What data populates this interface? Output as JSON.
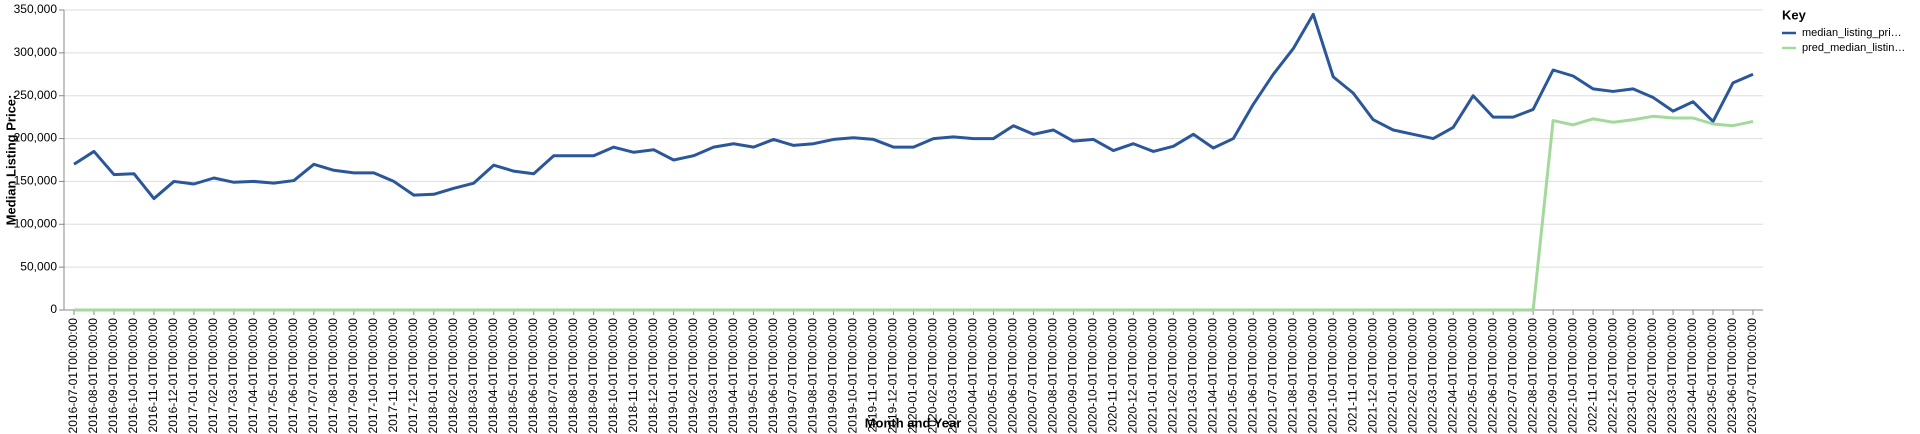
{
  "chart_data": {
    "type": "line",
    "x_label": "Month and Year",
    "y_label": "Median Listing Price:",
    "legend_title": "Key",
    "legend": "right",
    "grid": true,
    "categories": [
      "2016-07-01T00:00:00",
      "2016-08-01T00:00:00",
      "2016-09-01T00:00:00",
      "2016-10-01T00:00:00",
      "2016-11-01T00:00:00",
      "2016-12-01T00:00:00",
      "2017-01-01T00:00:00",
      "2017-02-01T00:00:00",
      "2017-03-01T00:00:00",
      "2017-04-01T00:00:00",
      "2017-05-01T00:00:00",
      "2017-06-01T00:00:00",
      "2017-07-01T00:00:00",
      "2017-08-01T00:00:00",
      "2017-09-01T00:00:00",
      "2017-10-01T00:00:00",
      "2017-11-01T00:00:00",
      "2017-12-01T00:00:00",
      "2018-01-01T00:00:00",
      "2018-02-01T00:00:00",
      "2018-03-01T00:00:00",
      "2018-04-01T00:00:00",
      "2018-05-01T00:00:00",
      "2018-06-01T00:00:00",
      "2018-07-01T00:00:00",
      "2018-08-01T00:00:00",
      "2018-09-01T00:00:00",
      "2018-10-01T00:00:00",
      "2018-11-01T00:00:00",
      "2018-12-01T00:00:00",
      "2019-01-01T00:00:00",
      "2019-02-01T00:00:00",
      "2019-03-01T00:00:00",
      "2019-04-01T00:00:00",
      "2019-05-01T00:00:00",
      "2019-06-01T00:00:00",
      "2019-07-01T00:00:00",
      "2019-08-01T00:00:00",
      "2019-09-01T00:00:00",
      "2019-10-01T00:00:00",
      "2019-11-01T00:00:00",
      "2019-12-01T00:00:00",
      "2020-01-01T00:00:00",
      "2020-02-01T00:00:00",
      "2020-03-01T00:00:00",
      "2020-04-01T00:00:00",
      "2020-05-01T00:00:00",
      "2020-06-01T00:00:00",
      "2020-07-01T00:00:00",
      "2020-08-01T00:00:00",
      "2020-09-01T00:00:00",
      "2020-10-01T00:00:00",
      "2020-11-01T00:00:00",
      "2020-12-01T00:00:00",
      "2021-01-01T00:00:00",
      "2021-02-01T00:00:00",
      "2021-03-01T00:00:00",
      "2021-04-01T00:00:00",
      "2021-05-01T00:00:00",
      "2021-06-01T00:00:00",
      "2021-07-01T00:00:00",
      "2021-08-01T00:00:00",
      "2021-09-01T00:00:00",
      "2021-10-01T00:00:00",
      "2021-11-01T00:00:00",
      "2021-12-01T00:00:00",
      "2022-01-01T00:00:00",
      "2022-02-01T00:00:00",
      "2022-03-01T00:00:00",
      "2022-04-01T00:00:00",
      "2022-05-01T00:00:00",
      "2022-06-01T00:00:00",
      "2022-07-01T00:00:00",
      "2022-08-01T00:00:00",
      "2022-09-01T00:00:00",
      "2022-10-01T00:00:00",
      "2022-11-01T00:00:00",
      "2022-12-01T00:00:00",
      "2023-01-01T00:00:00",
      "2023-02-01T00:00:00",
      "2023-03-01T00:00:00",
      "2023-04-01T00:00:00",
      "2023-05-01T00:00:00",
      "2023-06-01T00:00:00",
      "2023-07-01T00:00:00"
    ],
    "series": [
      {
        "name": "median_listing_pri…",
        "color": "#2b579a",
        "values": [
          170000,
          185000,
          158000,
          159000,
          130000,
          150000,
          147000,
          154000,
          149000,
          150000,
          148000,
          151000,
          170000,
          163000,
          160000,
          160000,
          150000,
          134000,
          135000,
          142000,
          148000,
          169000,
          162000,
          159000,
          180000,
          180000,
          180000,
          190000,
          184000,
          187000,
          175000,
          180000,
          190000,
          194000,
          190000,
          199000,
          192000,
          194000,
          199000,
          201000,
          199000,
          190000,
          190000,
          200000,
          202000,
          200000,
          200000,
          215000,
          205000,
          210000,
          197000,
          199000,
          186000,
          194000,
          185000,
          191000,
          205000,
          189000,
          200000,
          240000,
          275000,
          305000,
          345000,
          272000,
          253000,
          222000,
          210000,
          205000,
          200000,
          213000,
          250000,
          225000,
          225000,
          234000,
          280000,
          273000,
          258000,
          255000,
          258000,
          248000,
          232000,
          243000,
          220000,
          265000,
          275000
        ]
      },
      {
        "name": "pred_median_listin…",
        "color": "#a3d99b",
        "values": [
          0,
          0,
          0,
          0,
          0,
          0,
          0,
          0,
          0,
          0,
          0,
          0,
          0,
          0,
          0,
          0,
          0,
          0,
          0,
          0,
          0,
          0,
          0,
          0,
          0,
          0,
          0,
          0,
          0,
          0,
          0,
          0,
          0,
          0,
          0,
          0,
          0,
          0,
          0,
          0,
          0,
          0,
          0,
          0,
          0,
          0,
          0,
          0,
          0,
          0,
          0,
          0,
          0,
          0,
          0,
          0,
          0,
          0,
          0,
          0,
          0,
          0,
          0,
          0,
          0,
          0,
          0,
          0,
          0,
          0,
          0,
          0,
          0,
          0,
          221000,
          216000,
          223000,
          219000,
          222000,
          226000,
          224000,
          224000,
          217000,
          215000,
          220000
        ]
      }
    ],
    "ylim": [
      0,
      350000
    ],
    "yticks": [
      0,
      {
        "value": 50000,
        "label": "50,000"
      },
      {
        "value": 100000,
        "label": "100,000"
      },
      {
        "value": 150000,
        "label": "150,000"
      },
      {
        "value": 200000,
        "label": "200,000"
      },
      {
        "value": 250000,
        "label": "250,000"
      },
      {
        "value": 300000,
        "label": "300,000"
      },
      {
        "value": 350000,
        "label": "350,000"
      }
    ]
  }
}
